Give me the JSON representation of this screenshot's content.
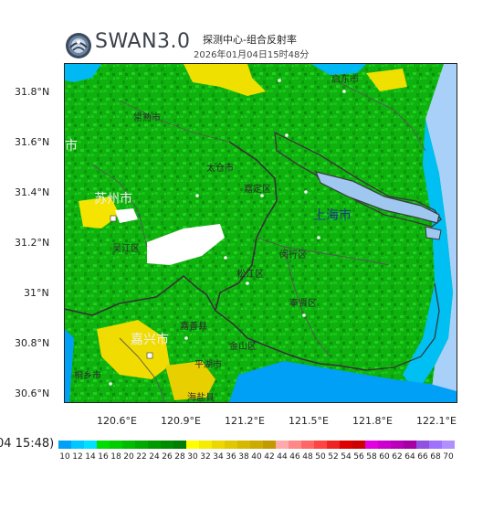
{
  "header": {
    "brand": "SWAN3.0",
    "title": "探测中心-组合反射率",
    "timestamp": "2026年01月04日15时48分"
  },
  "left_time": "04 15:48)",
  "axes": {
    "lat_labels": [
      "31.8°N",
      "31.6°N",
      "31.4°N",
      "31.2°N",
      "31°N",
      "30.8°N",
      "30.6°N"
    ],
    "lon_labels": [
      "120.6°E",
      "120.9°E",
      "121.2°E",
      "121.5°E",
      "121.8°E",
      "122.1°E"
    ]
  },
  "map": {
    "places": {
      "qidong": "启东市",
      "changshu": "常熟市",
      "taicang": "太仓市",
      "jiading": "嘉定区",
      "shanghai": "上海市",
      "suzhou": "苏州市",
      "wujiang": "吴江区",
      "minhang": "闵行区",
      "songjiang": "松江区",
      "fengxian": "奉贤区",
      "jiaxing": "嘉兴市",
      "jiashan": "嘉善县",
      "jinshan": "金山区",
      "pinghu": "平湖市",
      "tongxiang": "桐乡市",
      "haiyan": "海盐县",
      "left_edge": "市"
    }
  },
  "colorbar": {
    "labels": [
      "10",
      "12",
      "14",
      "16",
      "18",
      "20",
      "22",
      "24",
      "26",
      "28",
      "30",
      "32",
      "34",
      "36",
      "38",
      "40",
      "42",
      "44",
      "46",
      "48",
      "50",
      "52",
      "54",
      "56",
      "58",
      "60",
      "62",
      "64",
      "66",
      "68",
      "70"
    ],
    "colors": [
      "#00a0f6",
      "#00c8ff",
      "#00e0ff",
      "#00dd00",
      "#00cc00",
      "#00bb00",
      "#00aa00",
      "#009900",
      "#008c00",
      "#007e00",
      "#ffff00",
      "#f5ec00",
      "#ead800",
      "#e0c800",
      "#d6b800",
      "#ccaa00",
      "#c29a00",
      "#ffaaaa",
      "#ff8888",
      "#ff6666",
      "#ff4444",
      "#ee2222",
      "#dd0000",
      "#cc0000",
      "#e000e0",
      "#cc00cc",
      "#b800b8",
      "#a400a4",
      "#9050e0",
      "#a070ff",
      "#b090ff"
    ]
  }
}
